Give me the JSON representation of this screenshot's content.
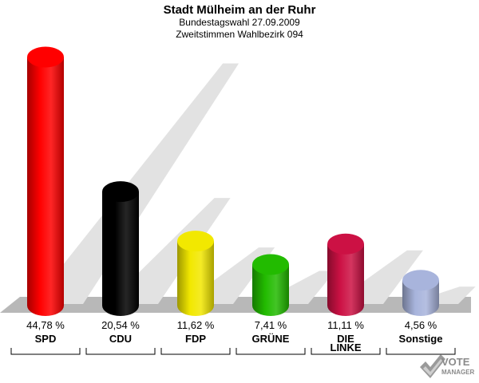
{
  "header": {
    "title": "Stadt Mülheim an der Ruhr",
    "subtitle": "Bundestagswahl 27.09.2009",
    "subtitle2": "Zweitstimmen Wahlbezirk 094"
  },
  "chart_data": {
    "type": "bar",
    "title": "Stadt Mülheim an der Ruhr",
    "subtitle": "Bundestagswahl 27.09.2009 / Zweitstimmen Wahlbezirk 094",
    "categories": [
      "SPD",
      "CDU",
      "FDP",
      "GRÜNE",
      "DIE LINKE",
      "Sonstige"
    ],
    "category_lines": [
      [
        "SPD"
      ],
      [
        "CDU"
      ],
      [
        "FDP"
      ],
      [
        "GRÜNE"
      ],
      [
        "DIE",
        "LINKE"
      ],
      [
        "Sonstige"
      ]
    ],
    "values": [
      44.78,
      20.54,
      11.62,
      7.41,
      11.11,
      4.56
    ],
    "value_labels": [
      "44,78 %",
      "20,54 %",
      "11,62 %",
      "7,41 %",
      "11,11 %",
      "4,56 %"
    ],
    "colors": [
      "#ff0000",
      "#000000",
      "#f2e800",
      "#22bb00",
      "#cc1144",
      "#a8b4dc"
    ],
    "ylim": [
      0,
      45
    ],
    "grid": false,
    "legend": "none"
  },
  "logo": {
    "text1": "VOTE",
    "text2": "MANAGER"
  }
}
